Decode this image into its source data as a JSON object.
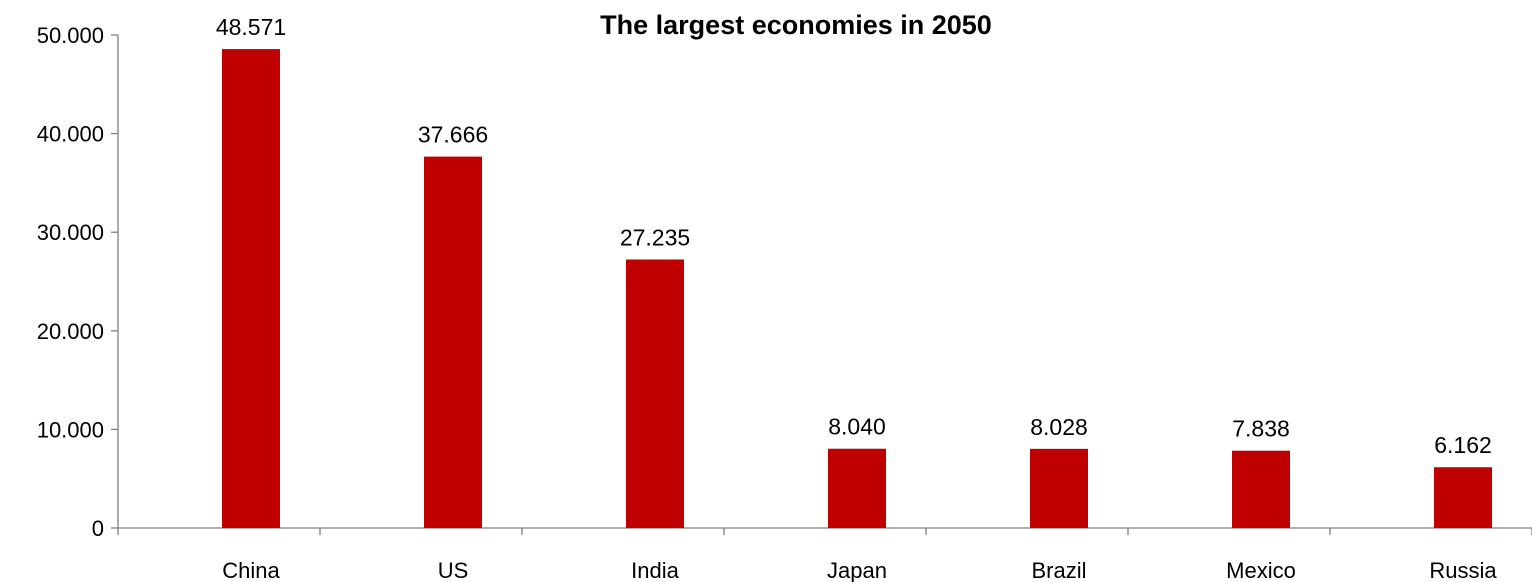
{
  "chart_data": {
    "type": "bar",
    "title": "The largest economies in 2050",
    "xlabel": "",
    "ylabel": "",
    "categories": [
      "China",
      "US",
      "India",
      "Japan",
      "Brazil",
      "Mexico",
      "Russia"
    ],
    "values": [
      48571,
      37666,
      27235,
      8040,
      8028,
      7838,
      6162
    ],
    "data_labels": [
      "48.571",
      "37.666",
      "27.235",
      "8.040",
      "8.028",
      "7.838",
      "6.162"
    ],
    "y_ticks": [
      0,
      10000,
      20000,
      30000,
      40000,
      50000
    ],
    "y_tick_labels": [
      "0",
      "10.000",
      "20.000",
      "30.000",
      "40.000",
      "50.000"
    ],
    "ylim": [
      0,
      50000
    ],
    "grid": false,
    "legend": "none",
    "bar_color": "#C00000"
  }
}
